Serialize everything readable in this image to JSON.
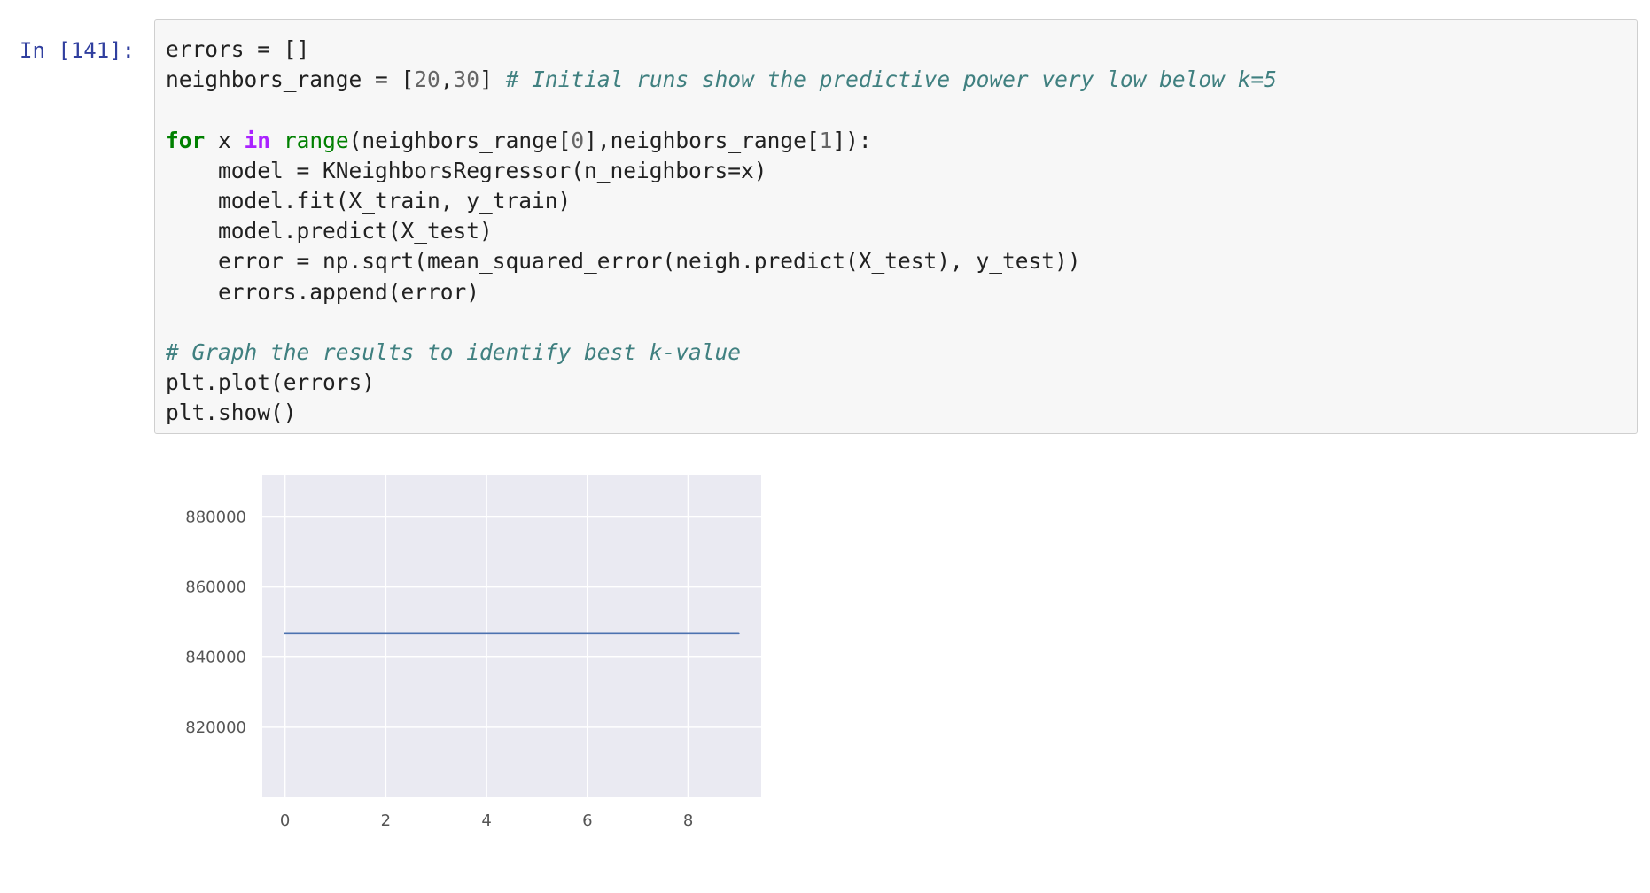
{
  "cell": {
    "prompt": "In [141]:",
    "lines": [
      [
        {
          "t": "errors = []",
          "c": ""
        }
      ],
      [
        {
          "t": "neighbors_range = [",
          "c": ""
        },
        {
          "t": "20",
          "c": "num"
        },
        {
          "t": ",",
          "c": ""
        },
        {
          "t": "30",
          "c": "num"
        },
        {
          "t": "] ",
          "c": ""
        },
        {
          "t": "# Initial runs show the predictive power very low below k=5",
          "c": "comment"
        }
      ],
      [],
      [
        {
          "t": "for",
          "c": "kw"
        },
        {
          "t": " x ",
          "c": ""
        },
        {
          "t": "in",
          "c": "op-word"
        },
        {
          "t": " ",
          "c": ""
        },
        {
          "t": "range",
          "c": "builtin"
        },
        {
          "t": "(neighbors_range[",
          "c": ""
        },
        {
          "t": "0",
          "c": "num"
        },
        {
          "t": "],neighbors_range[",
          "c": ""
        },
        {
          "t": "1",
          "c": "num"
        },
        {
          "t": "]):",
          "c": ""
        }
      ],
      [
        {
          "t": "    model = KNeighborsRegressor(n_neighbors=x)",
          "c": ""
        }
      ],
      [
        {
          "t": "    model.fit(X_train, y_train)",
          "c": ""
        }
      ],
      [
        {
          "t": "    model.predict(X_test)",
          "c": ""
        }
      ],
      [
        {
          "t": "    error = np.sqrt(mean_squared_error(neigh.predict(X_test), y_test))",
          "c": ""
        }
      ],
      [
        {
          "t": "    errors.append(error)",
          "c": ""
        }
      ],
      [],
      [
        {
          "t": "# Graph the results to identify best k-value",
          "c": "comment"
        }
      ],
      [
        {
          "t": "plt.plot(errors)",
          "c": ""
        }
      ],
      [
        {
          "t": "plt.show()",
          "c": ""
        }
      ]
    ]
  },
  "chart_data": {
    "type": "line",
    "x": [
      0,
      1,
      2,
      3,
      4,
      5,
      6,
      7,
      8,
      9
    ],
    "series": [
      {
        "values": [
          846800,
          846800,
          846800,
          846800,
          846800,
          846800,
          846800,
          846800,
          846800,
          846800
        ]
      }
    ],
    "xlim": [
      -0.45,
      9.45
    ],
    "ylim": [
      800000,
      892000
    ],
    "xticks": [
      0,
      2,
      4,
      6,
      8
    ],
    "xtick_labels": [
      "0",
      "2",
      "4",
      "6",
      "8"
    ],
    "yticks": [
      820000,
      840000,
      860000,
      880000
    ],
    "ytick_labels": [
      "820000",
      "840000",
      "860000",
      "880000"
    ],
    "grid": true,
    "style": {
      "background": "#eaeaf2",
      "grid_color": "#ffffff",
      "line_color": "#4c72b0",
      "tick_label_color": "#555555"
    }
  }
}
